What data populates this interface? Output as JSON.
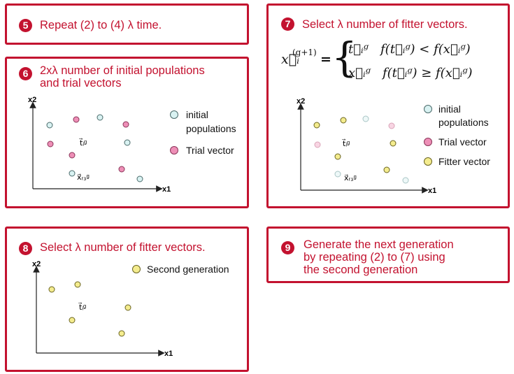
{
  "colors": {
    "accent": "#c3122f",
    "initial": "#d9f2f2",
    "trial": "#ee8fb7",
    "fitter": "#f4ec8e",
    "second": "#f4ec8e"
  },
  "panels": {
    "p5": {
      "number": "5",
      "title": "Repeat (2) to (4) λ time."
    },
    "p6": {
      "number": "6",
      "title_line1": "2xλ number of initial populations",
      "title_line2": "and trial vectors",
      "xaxis": "x1",
      "yaxis": "x2",
      "label_t": "t⃗ᵢᵍ",
      "label_x": "x⃗ᵣ₃ᵍ",
      "legend": [
        {
          "label_line1": "initial",
          "label_line2": "populations",
          "kind": "initial"
        },
        {
          "label_line1": "Trial vector",
          "kind": "trial"
        }
      ]
    },
    "p7": {
      "number": "7",
      "title": "Select λ number of fitter vectors.",
      "formula": {
        "lhs": "x⃗ᵢ",
        "lhs_sup": "(g+1)",
        "eq": "=",
        "row1": "t⃗ᵢᵍ   f(t⃗ᵢᵍ) < f(x⃗ᵢᵍ)",
        "row2": "x⃗ᵢᵍ   f(t⃗ᵢᵍ) ≥ f(x⃗ᵢᵍ)"
      },
      "xaxis": "x1",
      "yaxis": "x2",
      "label_t": "t⃗ᵢᵍ",
      "label_x": "x⃗ᵣ₃ᵍ",
      "legend": [
        {
          "label_line1": "initial",
          "label_line2": "populations",
          "kind": "initial"
        },
        {
          "label_line1": "Trial vector",
          "kind": "trial"
        },
        {
          "label_line1": "Fitter vector",
          "kind": "fitter"
        }
      ]
    },
    "p8": {
      "number": "8",
      "title": "Select λ number of fitter vectors.",
      "xaxis": "x1",
      "yaxis": "x2",
      "label_t": "t⃗ᵢᵍ",
      "legend": [
        {
          "label_line1": "Second generation",
          "kind": "second"
        }
      ]
    },
    "p9": {
      "number": "9",
      "title_line1": "Generate the next generation",
      "title_line2": "by repeating (2) to (7) using",
      "title_line3": "the second generation"
    }
  }
}
